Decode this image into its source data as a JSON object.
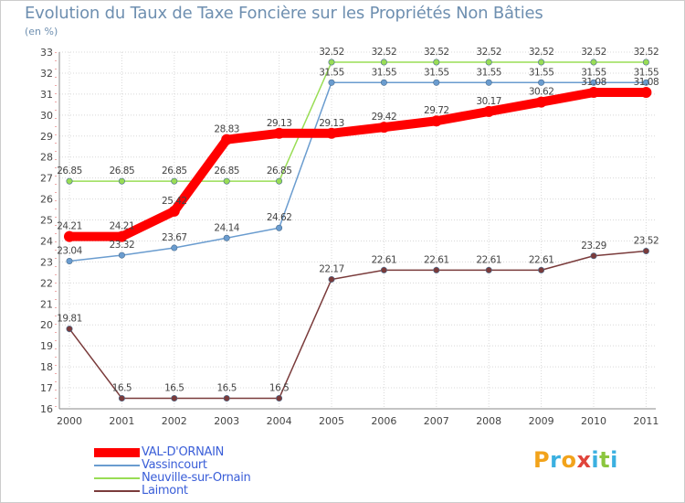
{
  "page": {
    "title": "Evolution du Taux de Taxe Foncière sur les Propriétés Non Bâties",
    "unit": "(en %)",
    "logo_text": "Proxiti"
  },
  "chart_data": {
    "type": "line",
    "title": "Evolution du Taux de Taxe Foncière sur les Propriétés Non Bâties",
    "ylabel": "(en %)",
    "xlabel": "",
    "x": [
      "2000",
      "2001",
      "2002",
      "2003",
      "2004",
      "2005",
      "2006",
      "2007",
      "2008",
      "2009",
      "2010",
      "2011"
    ],
    "ylim": [
      16,
      33
    ],
    "yticks": [
      16,
      17,
      18,
      19,
      20,
      21,
      22,
      23,
      24,
      25,
      26,
      27,
      28,
      29,
      30,
      31,
      32,
      33
    ],
    "grid": true,
    "legend_position": "bottom-left",
    "series": [
      {
        "name": "VAL-D'ORNAIN",
        "color": "#ff0000",
        "emphasis": true,
        "values": [
          24.21,
          24.21,
          25.42,
          28.83,
          29.13,
          29.13,
          29.42,
          29.72,
          30.17,
          30.62,
          31.08,
          31.08
        ],
        "labels": [
          "24.21",
          "24.21",
          "25.42",
          "28.83",
          "29.13",
          "29.13",
          "29.42",
          "29.72",
          "30.17",
          "30.62",
          "31.08",
          "31.08"
        ]
      },
      {
        "name": "Vassincourt",
        "color": "#6a9ccf",
        "values": [
          23.04,
          23.32,
          23.67,
          24.14,
          24.62,
          31.55,
          31.55,
          31.55,
          31.55,
          31.55,
          31.55,
          31.55
        ],
        "labels": [
          "23.04",
          "23.32",
          "23.67",
          "24.14",
          "24.62",
          "31.55",
          "31.55",
          "31.55",
          "31.55",
          "31.55",
          "31.55",
          "31.55"
        ]
      },
      {
        "name": "Neuville-sur-Ornain",
        "color": "#99dd55",
        "values": [
          26.85,
          26.85,
          26.85,
          26.85,
          26.85,
          32.52,
          32.52,
          32.52,
          32.52,
          32.52,
          32.52,
          32.52
        ],
        "labels": [
          "26.85",
          "26.85",
          "26.85",
          "26.85",
          "26.85",
          "32.52",
          "32.52",
          "32.52",
          "32.52",
          "32.52",
          "32.52",
          "32.52"
        ]
      },
      {
        "name": "Laimont",
        "color": "#7a3b3b",
        "values": [
          19.81,
          16.5,
          16.5,
          16.5,
          16.5,
          22.17,
          22.61,
          22.61,
          22.61,
          22.61,
          23.29,
          23.52
        ],
        "labels": [
          "19.81",
          "16.5",
          "16.5",
          "16.5",
          "16.5",
          "22.17",
          "22.61",
          "22.61",
          "22.61",
          "22.61",
          "23.29",
          "23.52"
        ]
      }
    ]
  }
}
